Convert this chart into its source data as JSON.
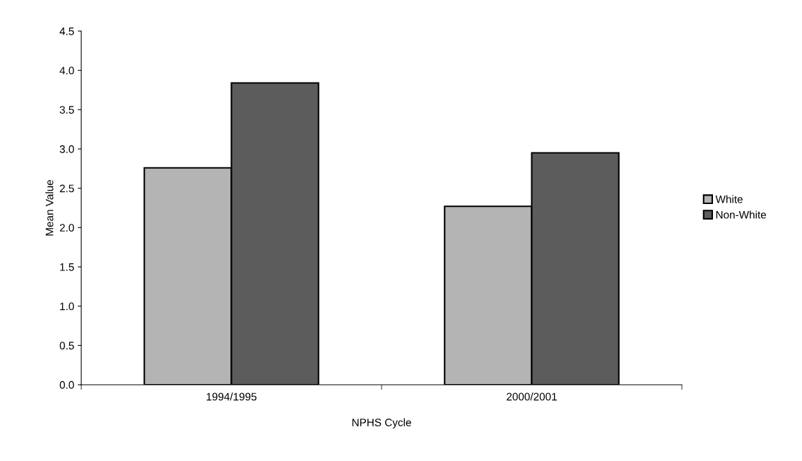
{
  "chart_data": {
    "type": "bar",
    "xlabel": "NPHS Cycle",
    "ylabel": "Mean Value",
    "categories": [
      "1994/1995",
      "2000/2001"
    ],
    "series": [
      {
        "name": "White",
        "color": "#b4b4b4",
        "values": [
          2.76,
          2.27
        ]
      },
      {
        "name": "Non-White",
        "color": "#5c5c5c",
        "values": [
          3.84,
          2.95
        ]
      }
    ],
    "ylim": [
      0,
      4.5
    ],
    "yticks": [
      {
        "value": 0,
        "label": "0.0"
      },
      {
        "value": 0.5,
        "label": "0.5"
      },
      {
        "value": 1,
        "label": "1.0"
      },
      {
        "value": 1.5,
        "label": "1.5"
      },
      {
        "value": 2,
        "label": "2.0"
      },
      {
        "value": 2.5,
        "label": "2.5"
      },
      {
        "value": 3,
        "label": "3.0"
      },
      {
        "value": 3.5,
        "label": "3.5"
      },
      {
        "value": 4,
        "label": "4.0"
      },
      {
        "value": 4.5,
        "label": "4.5"
      }
    ],
    "grid": false,
    "legend": "right"
  }
}
